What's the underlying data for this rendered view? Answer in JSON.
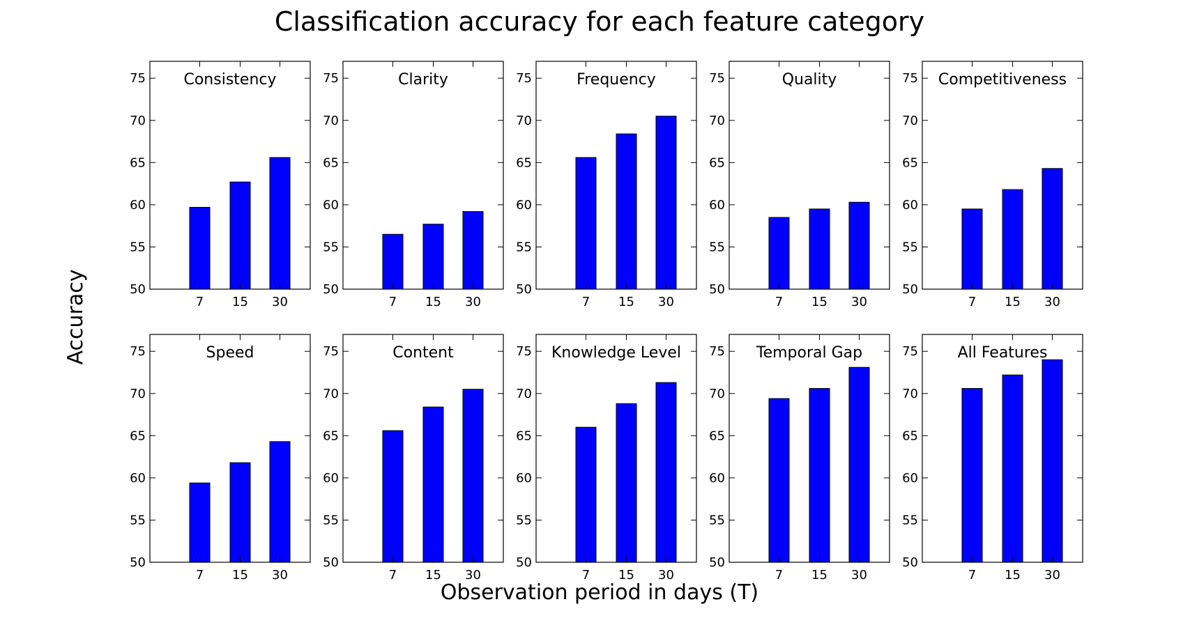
{
  "chart_data": {
    "type": "bar",
    "title": "Classification accuracy for each feature category",
    "xlabel": "Observation period in days (T)",
    "ylabel": "Accuracy",
    "categories": [
      "7",
      "15",
      "30"
    ],
    "ylim": [
      50,
      77
    ],
    "yticks": [
      50,
      55,
      60,
      65,
      70,
      75
    ],
    "grid": false,
    "panels": [
      {
        "name": "Consistency",
        "values": [
          59.7,
          62.7,
          65.6
        ]
      },
      {
        "name": "Clarity",
        "values": [
          56.5,
          57.7,
          59.2
        ]
      },
      {
        "name": "Frequency",
        "values": [
          65.6,
          68.4,
          70.5
        ]
      },
      {
        "name": "Quality",
        "values": [
          58.5,
          59.5,
          60.3
        ]
      },
      {
        "name": "Competitiveness",
        "values": [
          59.5,
          61.8,
          64.3
        ]
      },
      {
        "name": "Speed",
        "values": [
          59.4,
          61.8,
          64.3
        ]
      },
      {
        "name": "Content",
        "values": [
          65.6,
          68.4,
          70.5
        ]
      },
      {
        "name": "Knowledge Level",
        "values": [
          66.0,
          68.8,
          71.3
        ]
      },
      {
        "name": "Temporal Gap",
        "values": [
          69.4,
          70.6,
          73.1
        ]
      },
      {
        "name": "All Features",
        "values": [
          70.6,
          72.2,
          74.0
        ]
      }
    ],
    "colors": {
      "bar": "#0000ff",
      "edge": "#000000"
    }
  }
}
